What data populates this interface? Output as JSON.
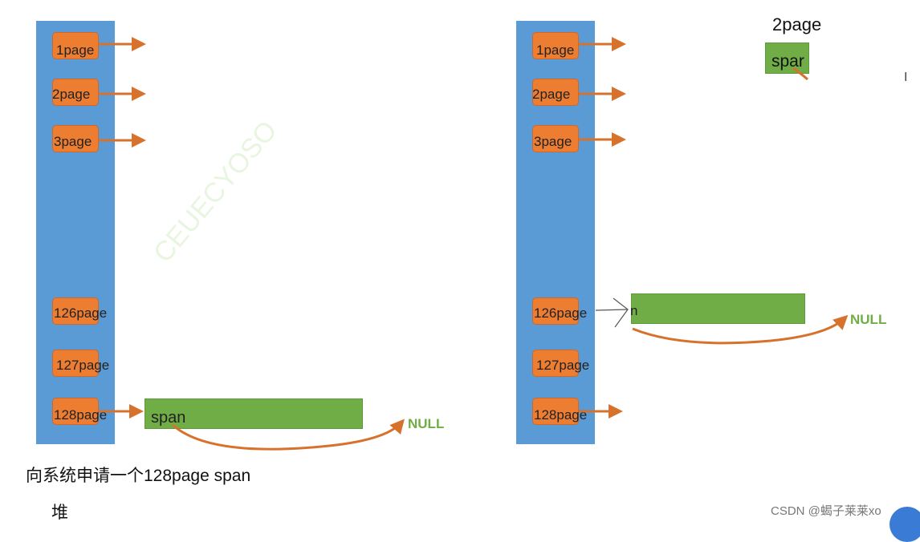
{
  "left": {
    "labels": [
      "1page",
      "2page",
      "3page",
      "126page",
      "127page",
      "128page"
    ],
    "span_label": "span",
    "null_label": "NULL",
    "caption": "向系统申请一个128page span",
    "caption2": "堆"
  },
  "right": {
    "labels": [
      "1page",
      "2page",
      "3page",
      "126page",
      "127page",
      "128page"
    ],
    "span_partial": "n",
    "null_label": "NULL",
    "top_label": "2page",
    "top_span": "spar"
  },
  "watermark": "CEUECYOSO",
  "credit": "CSDN @蝎子莱莱xo",
  "colors": {
    "column": "#5b9bd5",
    "cell": "#ed7d31",
    "span": "#70ad47",
    "arrow": "#d7722c"
  }
}
